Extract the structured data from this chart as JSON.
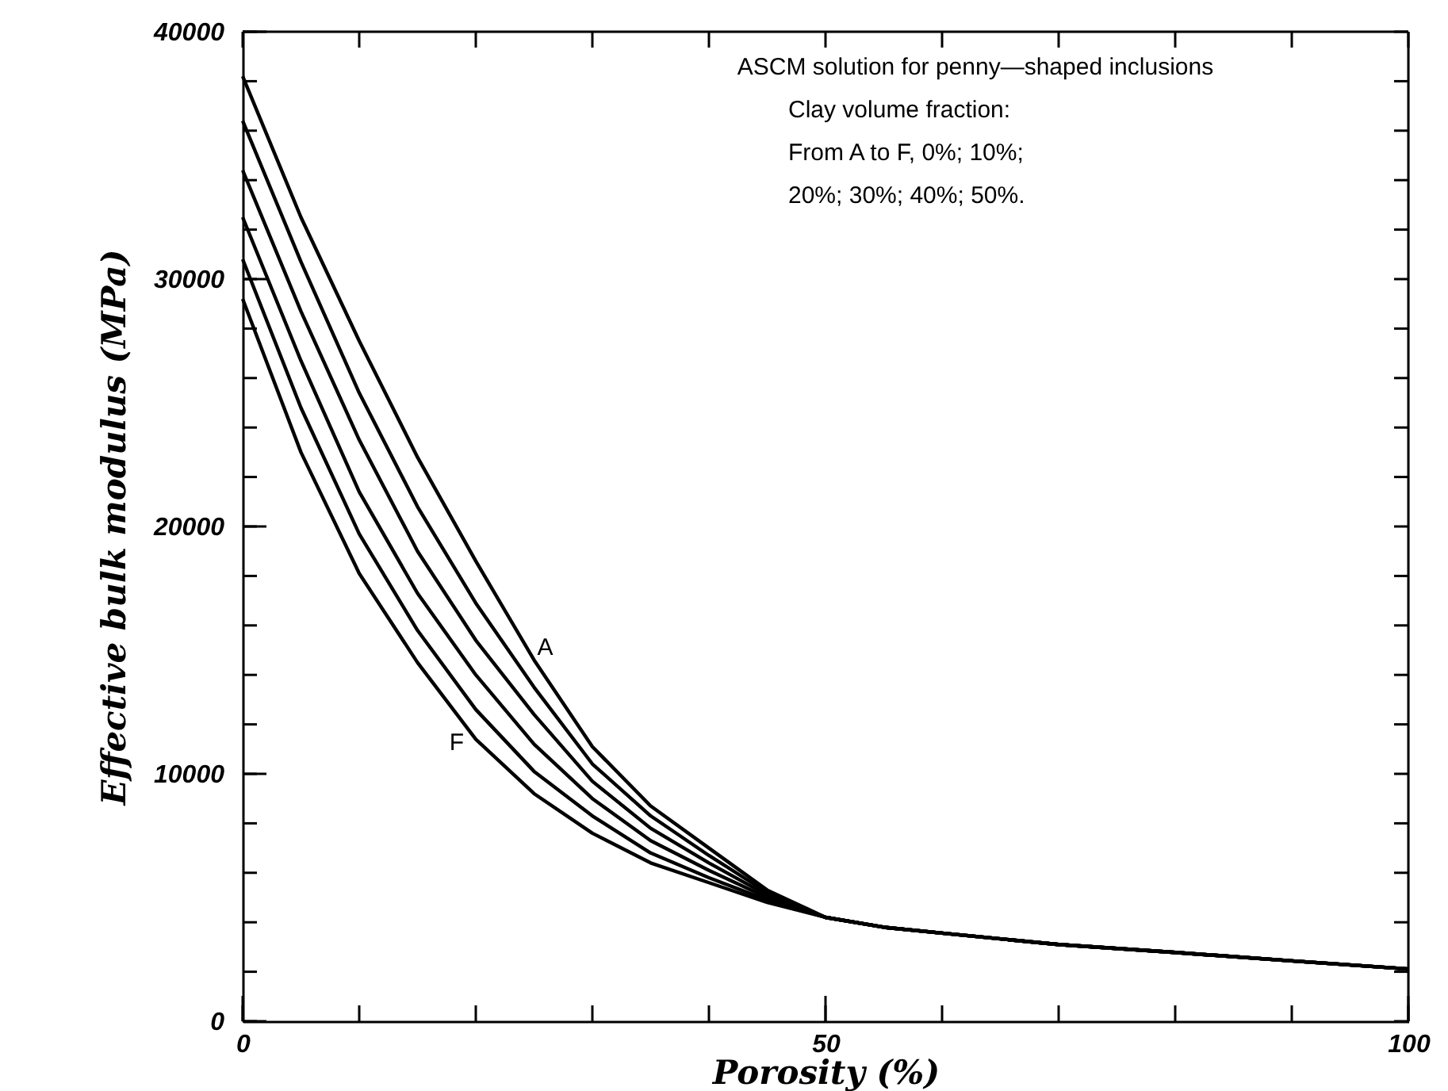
{
  "chart_data": {
    "type": "line",
    "xlabel": "Porosity (%)",
    "ylabel": "Effective bulk modulus (MPa)",
    "x": [
      0,
      5,
      10,
      15,
      20,
      25,
      30,
      35,
      40,
      45,
      50,
      55,
      60,
      70,
      80,
      90,
      100
    ],
    "series": [
      {
        "color": "#000000",
        "values": [
          38200,
          32500,
          27500,
          22800,
          18600,
          14600,
          11100,
          8700,
          7000,
          5300,
          4200,
          3800,
          3560,
          3100,
          2780,
          2440,
          2110
        ]
      },
      {
        "color": "#000000",
        "values": [
          36400,
          30700,
          25400,
          20800,
          16900,
          13500,
          10400,
          8300,
          6700,
          5200,
          4200,
          3800,
          3560,
          3100,
          2780,
          2440,
          2110
        ]
      },
      {
        "color": "#000000",
        "values": [
          34400,
          28700,
          23500,
          19000,
          15400,
          12400,
          9700,
          7800,
          6400,
          5100,
          4200,
          3800,
          3560,
          3100,
          2780,
          2440,
          2110
        ]
      },
      {
        "color": "#000000",
        "values": [
          32500,
          26700,
          21400,
          17300,
          14000,
          11200,
          9000,
          7300,
          6100,
          5000,
          4200,
          3800,
          3560,
          3100,
          2780,
          2440,
          2110
        ]
      },
      {
        "color": "#000000",
        "values": [
          30800,
          24800,
          19700,
          15800,
          12600,
          10100,
          8300,
          6800,
          5800,
          4900,
          4200,
          3800,
          3560,
          3100,
          2780,
          2440,
          2110
        ]
      },
      {
        "color": "#000000",
        "values": [
          29200,
          23000,
          18100,
          14500,
          11400,
          9200,
          7600,
          6400,
          5600,
          4800,
          4200,
          3800,
          3560,
          3100,
          2780,
          2440,
          2110
        ]
      }
    ],
    "xlim": [
      0,
      100
    ],
    "xticks": [
      0,
      {
        "value": 10,
        "label": null
      },
      {
        "value": 20,
        "label": null
      },
      {
        "value": 30,
        "label": null
      },
      {
        "value": 40,
        "label": null
      },
      50,
      {
        "value": 60,
        "label": null
      },
      {
        "value": 70,
        "label": null
      },
      {
        "value": 80,
        "label": null
      },
      {
        "value": 90,
        "label": null
      },
      100
    ],
    "ylim": [
      0,
      40000
    ],
    "yticks": [
      0,
      {
        "value": 2000,
        "label": null
      },
      {
        "value": 4000,
        "label": null
      },
      {
        "value": 6000,
        "label": null
      },
      {
        "value": 8000,
        "label": null
      },
      10000,
      {
        "value": 12000,
        "label": null
      },
      {
        "value": 14000,
        "label": null
      },
      {
        "value": 16000,
        "label": null
      },
      {
        "value": 18000,
        "label": null
      },
      20000,
      {
        "value": 22000,
        "label": null
      },
      {
        "value": 24000,
        "label": null
      },
      {
        "value": 26000,
        "label": null
      },
      {
        "value": 28000,
        "label": null
      },
      30000,
      {
        "value": 32000,
        "label": null
      },
      {
        "value": 34000,
        "label": null
      },
      {
        "value": 36000,
        "label": null
      },
      {
        "value": 38000,
        "label": null
      },
      40000
    ],
    "annotations": [
      "ASCM solution for penny—shaped inclusions",
      "Clay volume fraction:",
      "From A to F, 0%; 10%;",
      "20%; 30%; 40%; 50%.",
      {
        "text": "A",
        "x": 25,
        "y": 14600
      },
      {
        "text": "F",
        "x": 20,
        "y": 11400
      }
    ],
    "grid": false,
    "legend": false,
    "marker": "none",
    "line_style": "solid"
  }
}
